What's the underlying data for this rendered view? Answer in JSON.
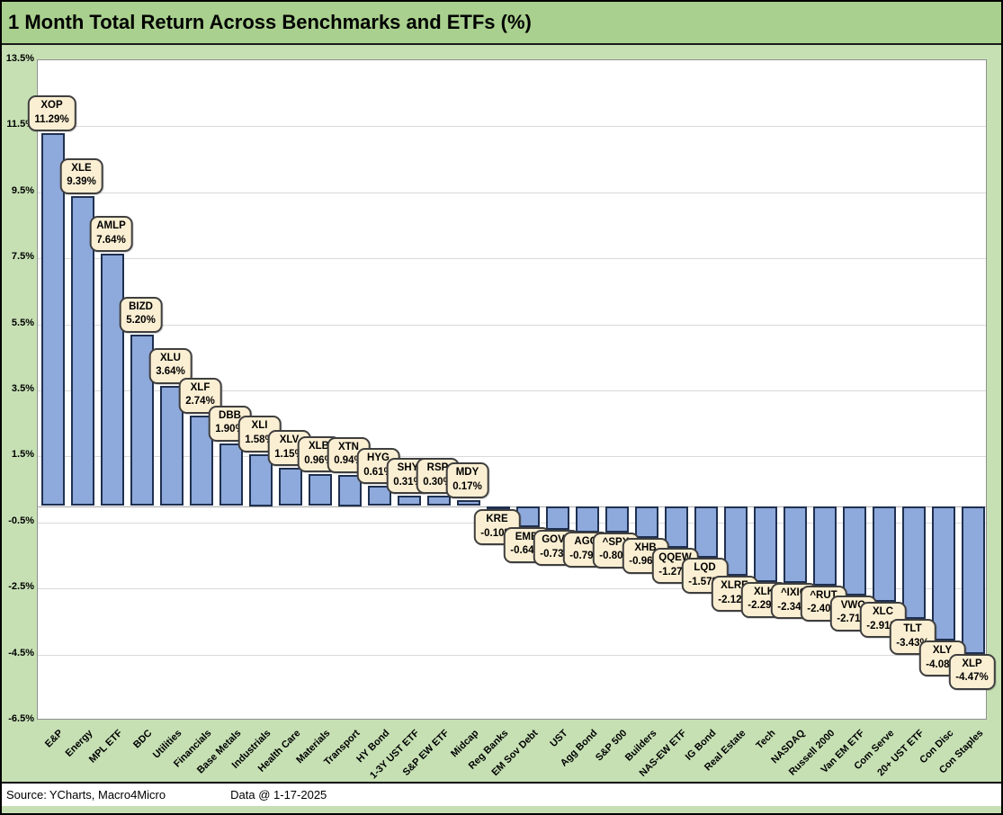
{
  "title": "1 Month Total Return Across Benchmarks and ETFs (%)",
  "footer": {
    "source_label": "Source:",
    "source_value": "YCharts, Macro4Micro",
    "data_date": "Data @ 1-17-2025"
  },
  "colors": {
    "header_bg": "#A9D08E",
    "chart_bg": "#C6E0B4",
    "plot_bg": "#FFFFFF",
    "gridline": "#D9D9D9",
    "bar_fill": "#8EA9DB",
    "bar_border": "#1F3050",
    "callout_bg": "#FBEFD3",
    "callout_border": "#3F3F3F"
  },
  "chart_data": {
    "type": "bar",
    "title": "1 Month Total Return Across Benchmarks and ETFs (%)",
    "xlabel": "",
    "ylabel": "",
    "ylim": [
      -6.5,
      13.5
    ],
    "ytick_step": 2,
    "ytick_labels": [
      "13.5%",
      "11.5%",
      "9.5%",
      "7.5%",
      "5.5%",
      "3.5%",
      "1.5%",
      "-0.5%",
      "-2.5%",
      "-4.5%",
      "-6.5%"
    ],
    "grid": true,
    "legend_position": "none",
    "categories": [
      "E&P",
      "Energy",
      "MPL ETF",
      "BDC",
      "Utilities",
      "Financials",
      "Base Metals",
      "Industrials",
      "Health Care",
      "Materials",
      "Transport",
      "HY Bond",
      "1-3Y UST ETF",
      "S&P EW ETF",
      "Midcap",
      "Reg Banks",
      "EM Sov Debt",
      "UST",
      "Agg Bond",
      "S&P 500",
      "Builders",
      "NAS-EW ETF",
      "IG Bond",
      "Real Estate",
      "Tech",
      "NASDAQ",
      "Russell 2000",
      "Van EM ETF",
      "Com Serve",
      "20+ UST ETF",
      "Con Disc",
      "Con Staples"
    ],
    "tickers": [
      "XOP",
      "XLE",
      "AMLP",
      "BIZD",
      "XLU",
      "XLF",
      "DBB",
      "XLI",
      "XLV",
      "XLB",
      "XTN",
      "HYG",
      "SHY",
      "RSP",
      "MDY",
      "KRE",
      "EMB",
      "GOVT",
      "AGG",
      "^SPX",
      "XHB",
      "QQEW",
      "LQD",
      "XLRE",
      "XLK",
      "^IXIC",
      "^RUT",
      "VWO",
      "XLC",
      "TLT",
      "XLY",
      "XLP"
    ],
    "values": [
      11.29,
      9.39,
      7.64,
      5.2,
      3.64,
      2.74,
      1.9,
      1.58,
      1.15,
      0.96,
      0.94,
      0.61,
      0.31,
      0.3,
      0.17,
      -0.1,
      -0.64,
      -0.73,
      -0.79,
      -0.8,
      -0.96,
      -1.27,
      -1.57,
      -2.12,
      -2.29,
      -2.34,
      -2.4,
      -2.71,
      -2.91,
      -3.43,
      -4.08,
      -4.47
    ]
  }
}
